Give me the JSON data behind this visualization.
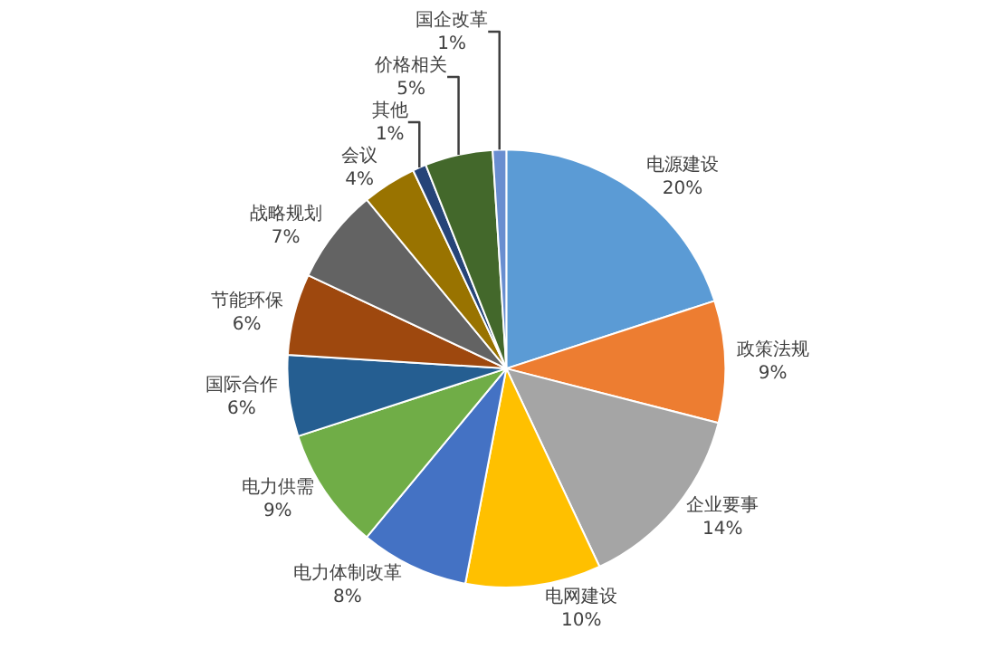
{
  "chart_data": {
    "type": "pie",
    "categories": [
      "电源建设",
      "政策法规",
      "企业要事",
      "电网建设",
      "电力体制改革",
      "电力供需",
      "国际合作",
      "节能环保",
      "战略规划",
      "会议",
      "其他",
      "价格相关",
      "国企改革"
    ],
    "values": [
      20,
      9,
      14,
      10,
      8,
      9,
      6,
      6,
      7,
      4,
      1,
      5,
      1
    ],
    "value_labels": [
      "20%",
      "9%",
      "14%",
      "10%",
      "8%",
      "9%",
      "6%",
      "6%",
      "7%",
      "4%",
      "1%",
      "5%",
      "1%"
    ],
    "colors": [
      "#5b9bd5",
      "#ed7d31",
      "#a5a5a5",
      "#ffc000",
      "#4472c4",
      "#70ad47",
      "#255e91",
      "#9e480e",
      "#636363",
      "#997300",
      "#264478",
      "#43682b",
      "#698ed0"
    ],
    "legend": false
  }
}
